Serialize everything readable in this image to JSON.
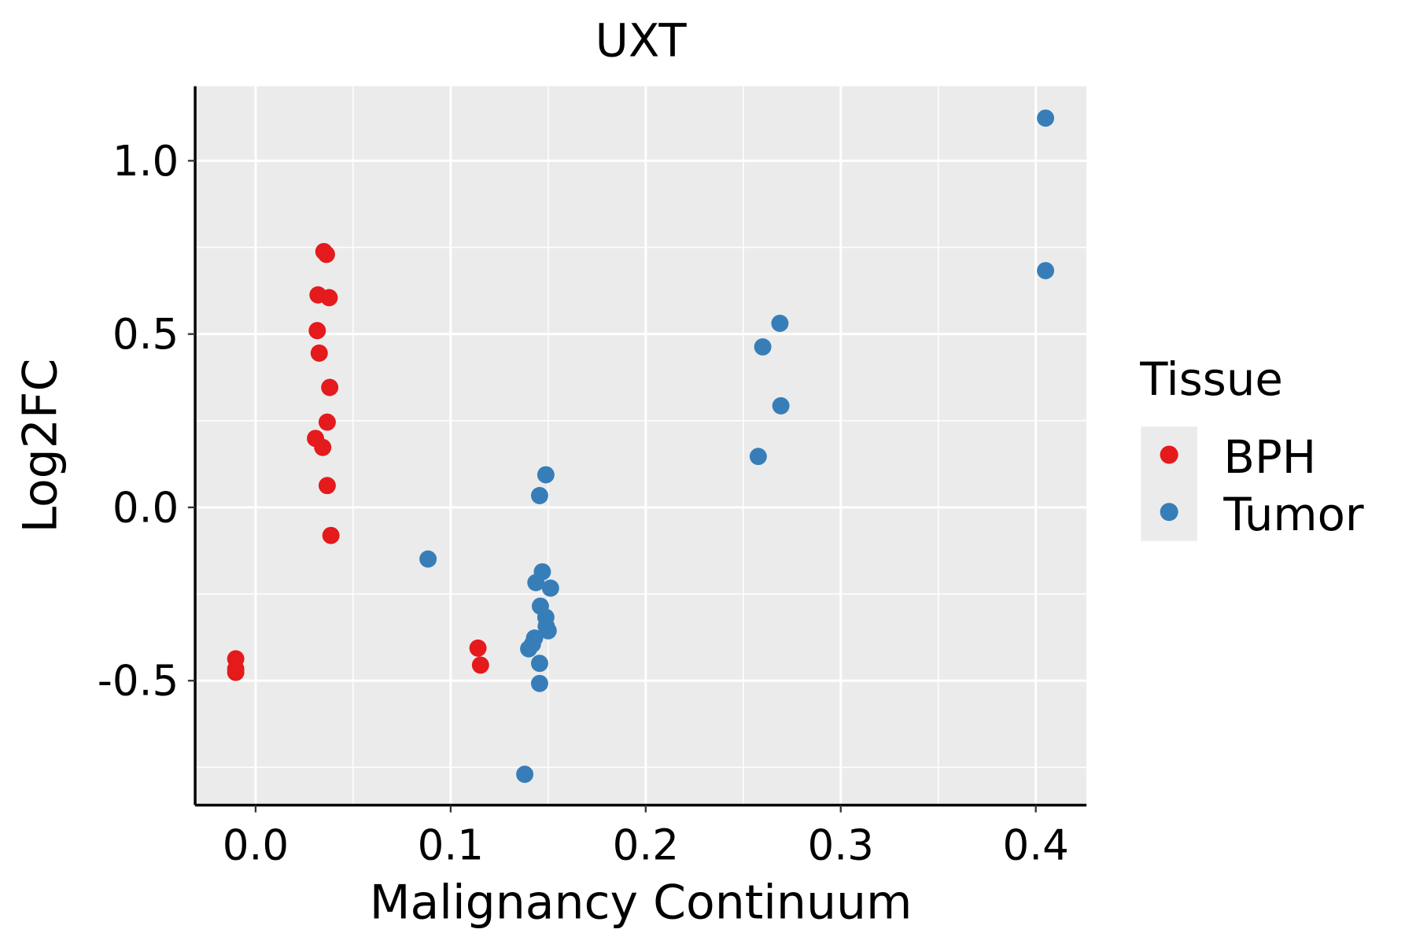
{
  "chart_data": {
    "type": "scatter",
    "title": "UXT",
    "xlabel": "Malignancy Continuum",
    "ylabel": "Log2FC",
    "xlim": [
      -0.031,
      0.426
    ],
    "ylim": [
      -0.859,
      1.215
    ],
    "xticks": [
      0.0,
      0.1,
      0.2,
      0.3,
      0.4
    ],
    "xtick_labels": [
      "0.0",
      "0.1",
      "0.2",
      "0.3",
      "0.4"
    ],
    "yticks": [
      -0.5,
      0.0,
      0.5,
      1.0
    ],
    "ytick_labels": [
      "-0.5",
      "0.0",
      "0.5",
      "1.0"
    ],
    "grid": true,
    "legend": {
      "title": "Tissue",
      "placement": "right",
      "entries": [
        "BPH",
        "Tumor"
      ]
    },
    "series": [
      {
        "name": "BPH",
        "color": "#E41A1C",
        "points": [
          [
            0.035,
            0.738
          ],
          [
            0.0363,
            0.73
          ],
          [
            0.032,
            0.613
          ],
          [
            0.0377,
            0.605
          ],
          [
            0.0316,
            0.51
          ],
          [
            0.0326,
            0.445
          ],
          [
            0.038,
            0.346
          ],
          [
            0.0367,
            0.246
          ],
          [
            0.0307,
            0.199
          ],
          [
            0.0344,
            0.173
          ],
          [
            0.0367,
            0.063
          ],
          [
            0.0386,
            -0.081
          ],
          [
            -0.0102,
            -0.437
          ],
          [
            -0.0102,
            -0.466
          ],
          [
            -0.0102,
            -0.476
          ],
          [
            0.114,
            -0.406
          ],
          [
            0.1153,
            -0.455
          ]
        ]
      },
      {
        "name": "Tumor",
        "color": "#377EB8",
        "points": [
          [
            0.405,
            1.123
          ],
          [
            0.405,
            0.683
          ],
          [
            0.2688,
            0.531
          ],
          [
            0.26,
            0.463
          ],
          [
            0.2693,
            0.293
          ],
          [
            0.2577,
            0.147
          ],
          [
            0.1488,
            0.094
          ],
          [
            0.1456,
            0.034
          ],
          [
            0.0884,
            -0.149
          ],
          [
            0.147,
            -0.186
          ],
          [
            0.1437,
            -0.217
          ],
          [
            0.1512,
            -0.233
          ],
          [
            0.146,
            -0.285
          ],
          [
            0.1488,
            -0.317
          ],
          [
            0.149,
            -0.343
          ],
          [
            0.15,
            -0.356
          ],
          [
            0.143,
            -0.377
          ],
          [
            0.1419,
            -0.395
          ],
          [
            0.14,
            -0.408
          ],
          [
            0.1456,
            -0.45
          ],
          [
            0.1456,
            -0.508
          ],
          [
            0.138,
            -0.77
          ]
        ]
      }
    ]
  }
}
